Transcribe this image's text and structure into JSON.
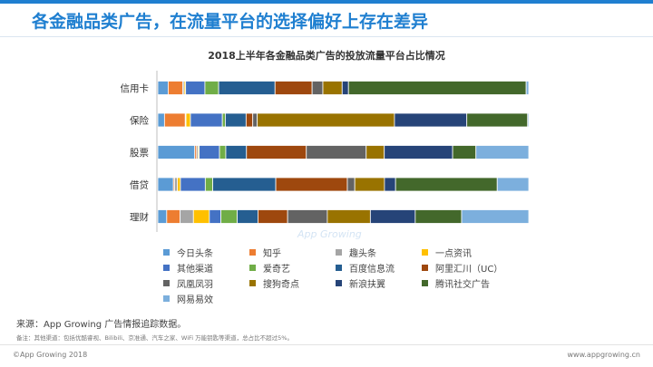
{
  "header": {
    "title": "各金融品类广告，在流量平台的选择偏好上存在差异"
  },
  "watermark": "App Growing",
  "chart_data": {
    "type": "bar",
    "orientation": "horizontal",
    "stacked": true,
    "percent_stacked": true,
    "title": "2018上半年各金融品类广告的投放流量平台占比情况",
    "categories": [
      "信用卡",
      "保险",
      "股票",
      "借贷",
      "理财"
    ],
    "legend_position": "bottom",
    "grid": false,
    "series": [
      {
        "name": "今日头条",
        "color": "#5b9bd5",
        "values": [
          2.8,
          1.8,
          10.0,
          4.2,
          2.4
        ]
      },
      {
        "name": "知乎",
        "color": "#ed7d31",
        "values": [
          3.9,
          5.6,
          0.5,
          0.3,
          3.6
        ]
      },
      {
        "name": "趣头条",
        "color": "#a5a5a5",
        "values": [
          0.4,
          0.2,
          0.4,
          0.8,
          3.6
        ]
      },
      {
        "name": "一点资讯",
        "color": "#ffc000",
        "values": [
          0.4,
          1.2,
          0.3,
          0.8,
          4.3
        ]
      },
      {
        "name": "其他渠道",
        "color": "#4472c4",
        "values": [
          5.2,
          8.6,
          5.5,
          6.7,
          3.1
        ]
      },
      {
        "name": "爱奇艺",
        "color": "#70ad47",
        "values": [
          3.7,
          0.8,
          1.7,
          2.0,
          4.4
        ]
      },
      {
        "name": "百度信息流",
        "color": "#255e91",
        "values": [
          15.2,
          5.6,
          5.6,
          17.0,
          5.6
        ]
      },
      {
        "name": "阿里汇川（UC）",
        "color": "#9e480e",
        "values": [
          10.0,
          1.8,
          16.2,
          19.3,
          8.0
        ]
      },
      {
        "name": "凤凰凤羽",
        "color": "#636363",
        "values": [
          2.9,
          1.2,
          16.2,
          2.0,
          10.7
        ]
      },
      {
        "name": "搜狗奇点",
        "color": "#997300",
        "values": [
          5.2,
          37.0,
          4.9,
          8.0,
          11.6
        ]
      },
      {
        "name": "新浪扶翼",
        "color": "#264478",
        "values": [
          1.7,
          19.5,
          18.5,
          3.0,
          12.1
        ]
      },
      {
        "name": "腾讯社交广告",
        "color": "#43682b",
        "values": [
          47.9,
          16.4,
          6.3,
          27.4,
          12.5
        ]
      },
      {
        "name": "网易易效",
        "color": "#7cafdd",
        "values": [
          0.7,
          0.3,
          14.3,
          8.5,
          18.1
        ]
      }
    ]
  },
  "source": "来源：App Growing 广告情报追踪数据。",
  "remark": "备注：其他渠道：包括优酷睿视、Bilibili、京准通、汽车之家、WiFi 万能钥匙等渠道，总占比不超过5%。",
  "footer": {
    "copyright": "©App Growing 2018",
    "website": "www.appgrowing.cn"
  }
}
